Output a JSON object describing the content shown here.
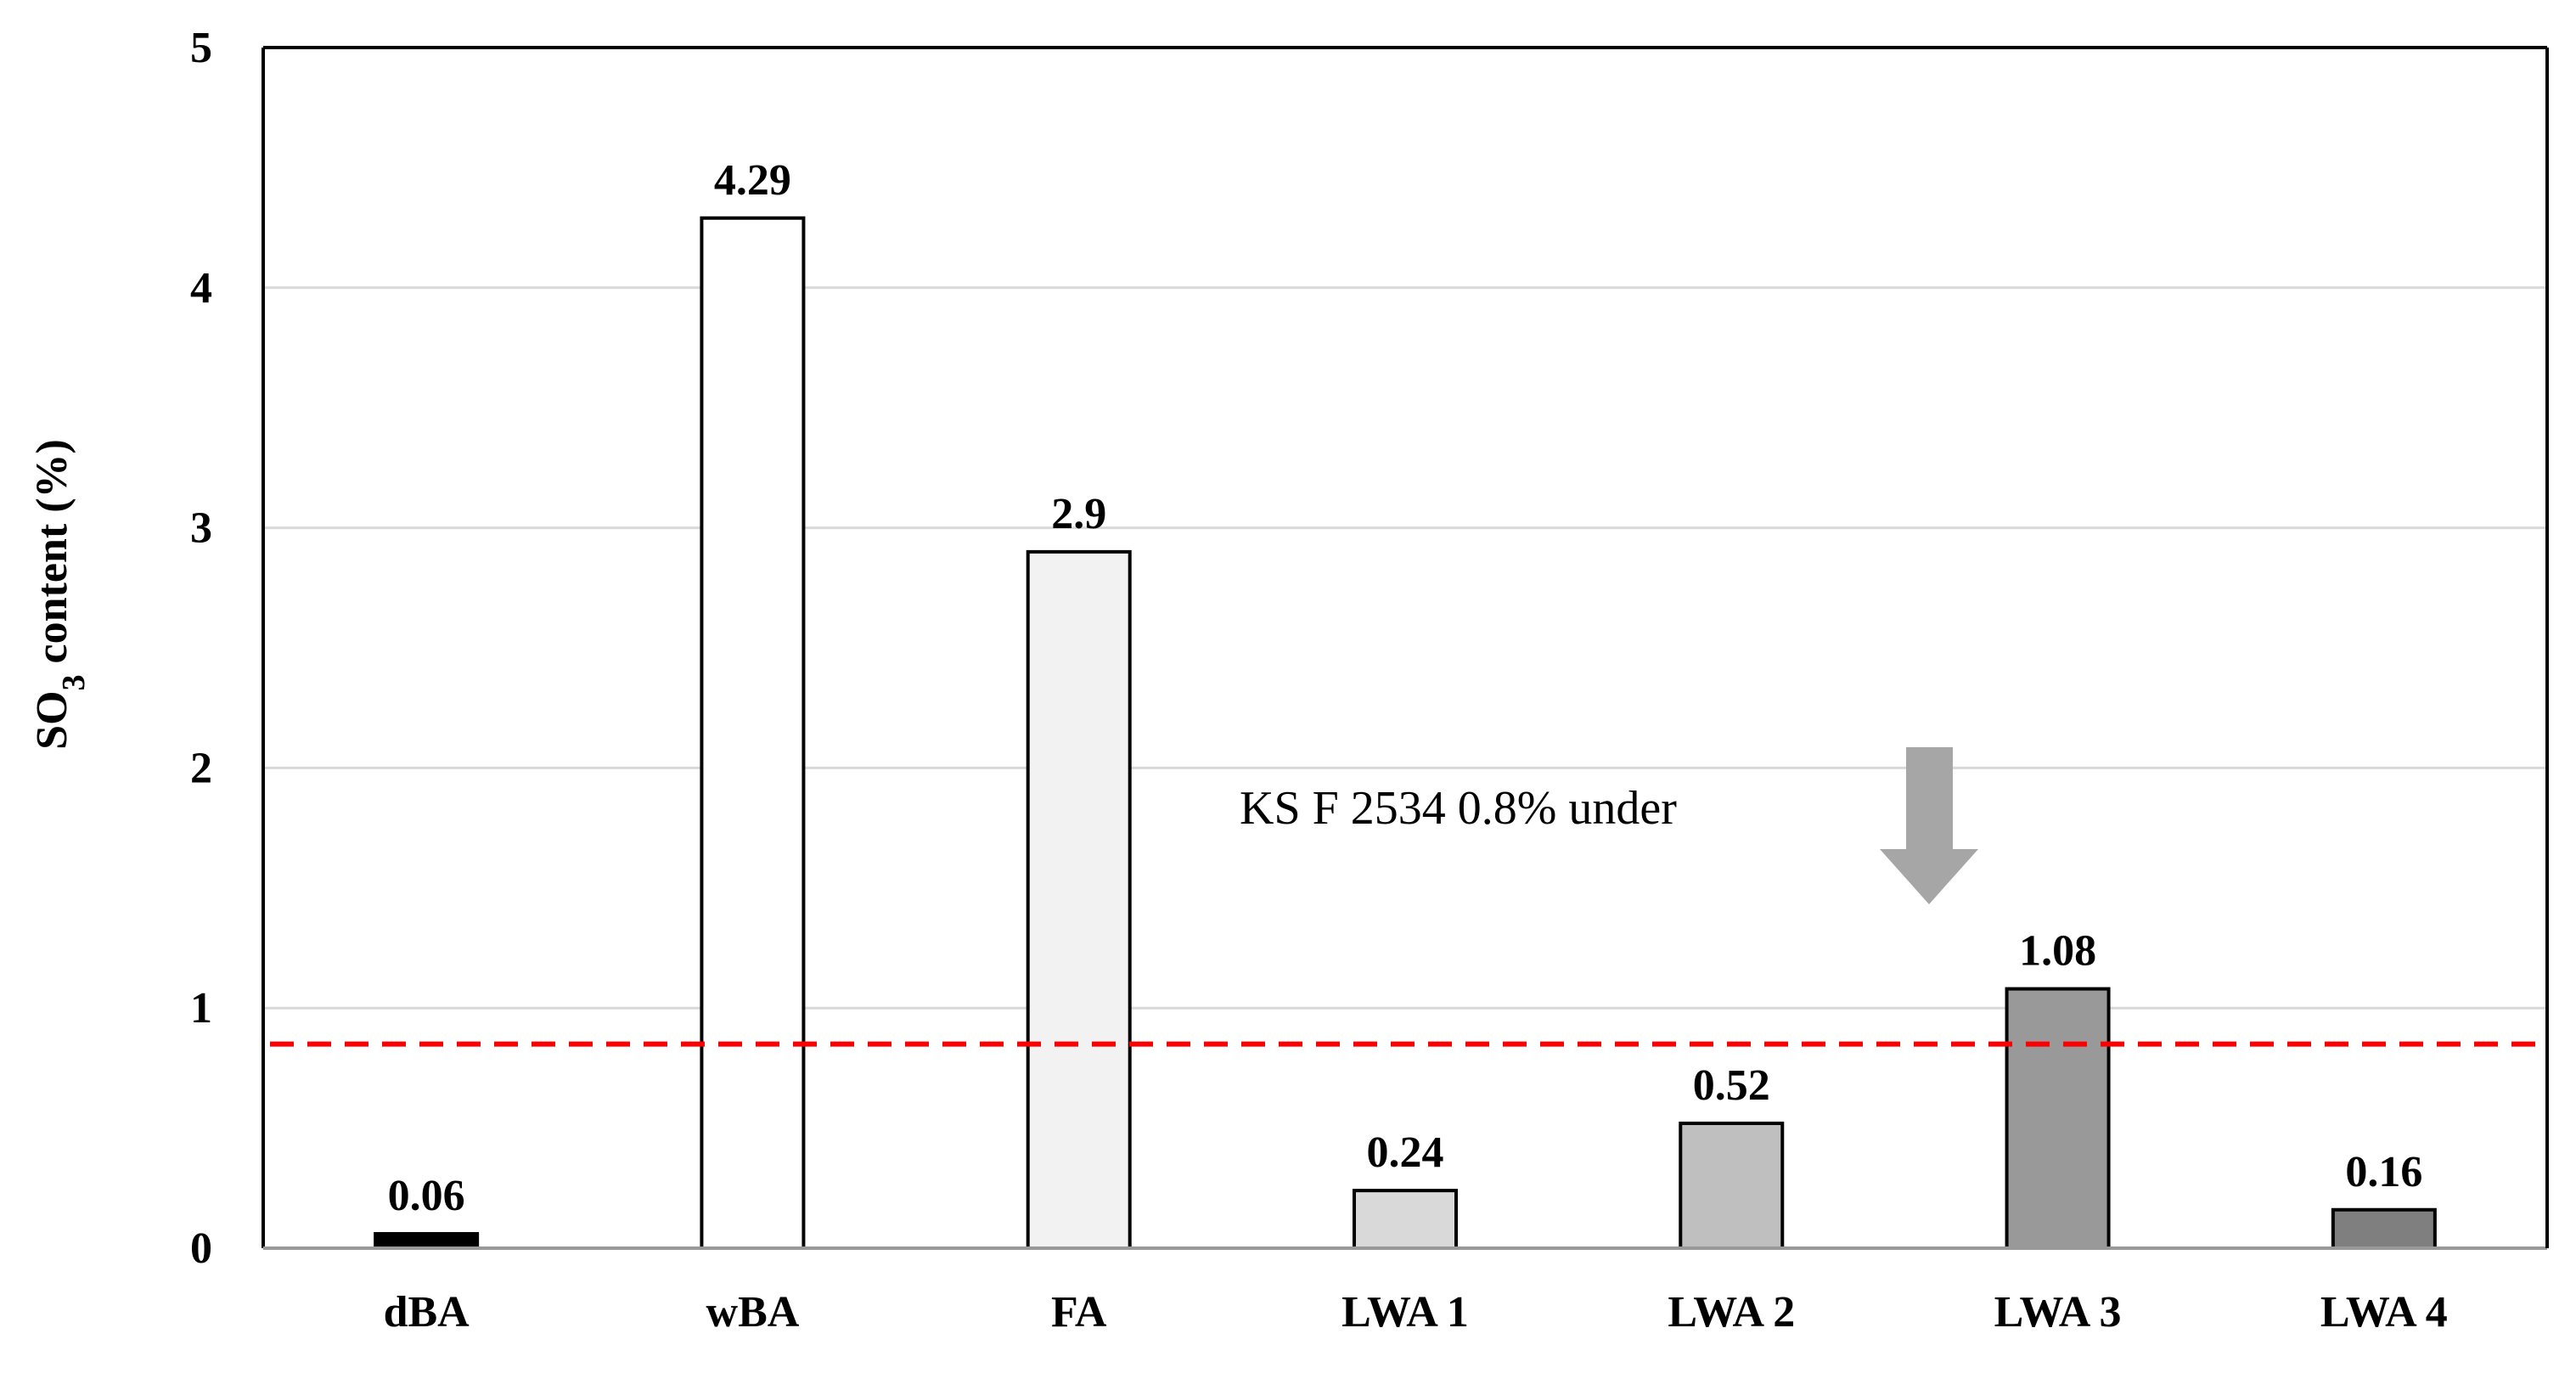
{
  "chart_data": {
    "type": "bar",
    "categories": [
      "dBA",
      "wBA",
      "FA",
      "LWA 1",
      "LWA 2",
      "LWA 3",
      "LWA 4"
    ],
    "values": [
      0.06,
      4.29,
      2.9,
      0.24,
      0.52,
      1.08,
      0.16
    ],
    "data_labels": [
      "0.06",
      "4.29",
      "2.9",
      "0.24",
      "0.52",
      "1.08",
      "0.16"
    ],
    "bar_colors": [
      "#000000",
      "#ffffff",
      "#f2f2f2",
      "#d9d9d9",
      "#bfbfbf",
      "#999999",
      "#7f7f7f"
    ],
    "ylabel_main": "SO",
    "ylabel_sub": "3",
    "ylabel_rest": " content (%)",
    "ylim": [
      0,
      5
    ],
    "yticks": [
      "0",
      "1",
      "2",
      "3",
      "4",
      "5"
    ],
    "grid": true,
    "reference_line": {
      "value": 0.85,
      "color": "#ff0000",
      "style": "dashed"
    },
    "annotation": "KS F 2534 0.8% under",
    "arrow_color": "#a6a6a6"
  }
}
